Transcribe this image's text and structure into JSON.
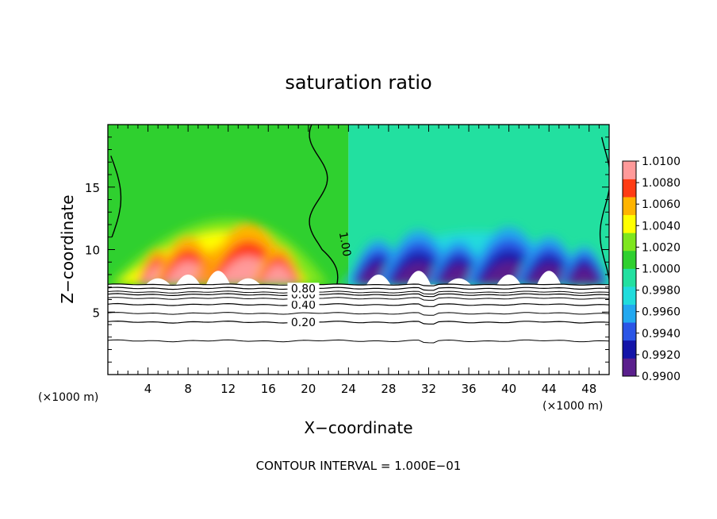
{
  "chart_data": {
    "type": "contour",
    "title": "saturation ratio",
    "xlabel": "X−coordinate",
    "ylabel": "Z−coordinate",
    "x_unit": "(×1000 m)",
    "xlim": [
      0,
      50
    ],
    "ylim": [
      0,
      20
    ],
    "x_ticks": [
      4,
      8,
      12,
      16,
      20,
      24,
      28,
      32,
      36,
      40,
      44,
      48
    ],
    "y_ticks": [
      5,
      10,
      15
    ],
    "surface_height": 7.2,
    "colorbar": {
      "levels": [
        0.99,
        0.992,
        0.994,
        0.996,
        0.998,
        1.0,
        1.002,
        1.004,
        1.006,
        1.008,
        1.01
      ],
      "labels": [
        "0.9900",
        "0.9920",
        "0.9940",
        "0.9960",
        "0.9980",
        "1.0000",
        "1.0020",
        "1.0040",
        "1.0060",
        "1.0080",
        "1.0100"
      ],
      "colors": [
        "#5a1f8c",
        "#1414a8",
        "#2a55e6",
        "#22a8f0",
        "#20dcdc",
        "#22e0a0",
        "#2fd02f",
        "#7ee61e",
        "#ffff00",
        "#ffb400",
        "#ff3c14",
        "#ff9a9a"
      ]
    },
    "contour_lines": [
      {
        "value": 0.2,
        "label": "0.20",
        "z": 4.2
      },
      {
        "value": 0.4,
        "label": "0.40",
        "z": 5.6
      },
      {
        "value": 0.6,
        "label": "0.60",
        "z": 6.4
      },
      {
        "value": 0.8,
        "label": "0.80",
        "z": 6.9
      },
      {
        "value": 1.0,
        "label": "1.00",
        "z": 10.0
      }
    ],
    "extra_contours_z": [
      2.7,
      4.9,
      6.1,
      6.6
    ],
    "moist_columns": [
      {
        "x": 5,
        "amp": 0.35
      },
      {
        "x": 8,
        "amp": 0.55
      },
      {
        "x": 11,
        "amp": 0.4
      },
      {
        "x": 14,
        "amp": 0.75
      },
      {
        "x": 17,
        "amp": 0.4
      }
    ],
    "dry_columns": [
      {
        "x": 27,
        "amp": 0.5
      },
      {
        "x": 31,
        "amp": 0.65
      },
      {
        "x": 35,
        "amp": 0.5
      },
      {
        "x": 40,
        "amp": 0.7
      },
      {
        "x": 44,
        "amp": 0.55
      },
      {
        "x": 47.5,
        "amp": 0.4
      }
    ],
    "footer": "CONTOUR INTERVAL = 1.000E−01"
  }
}
